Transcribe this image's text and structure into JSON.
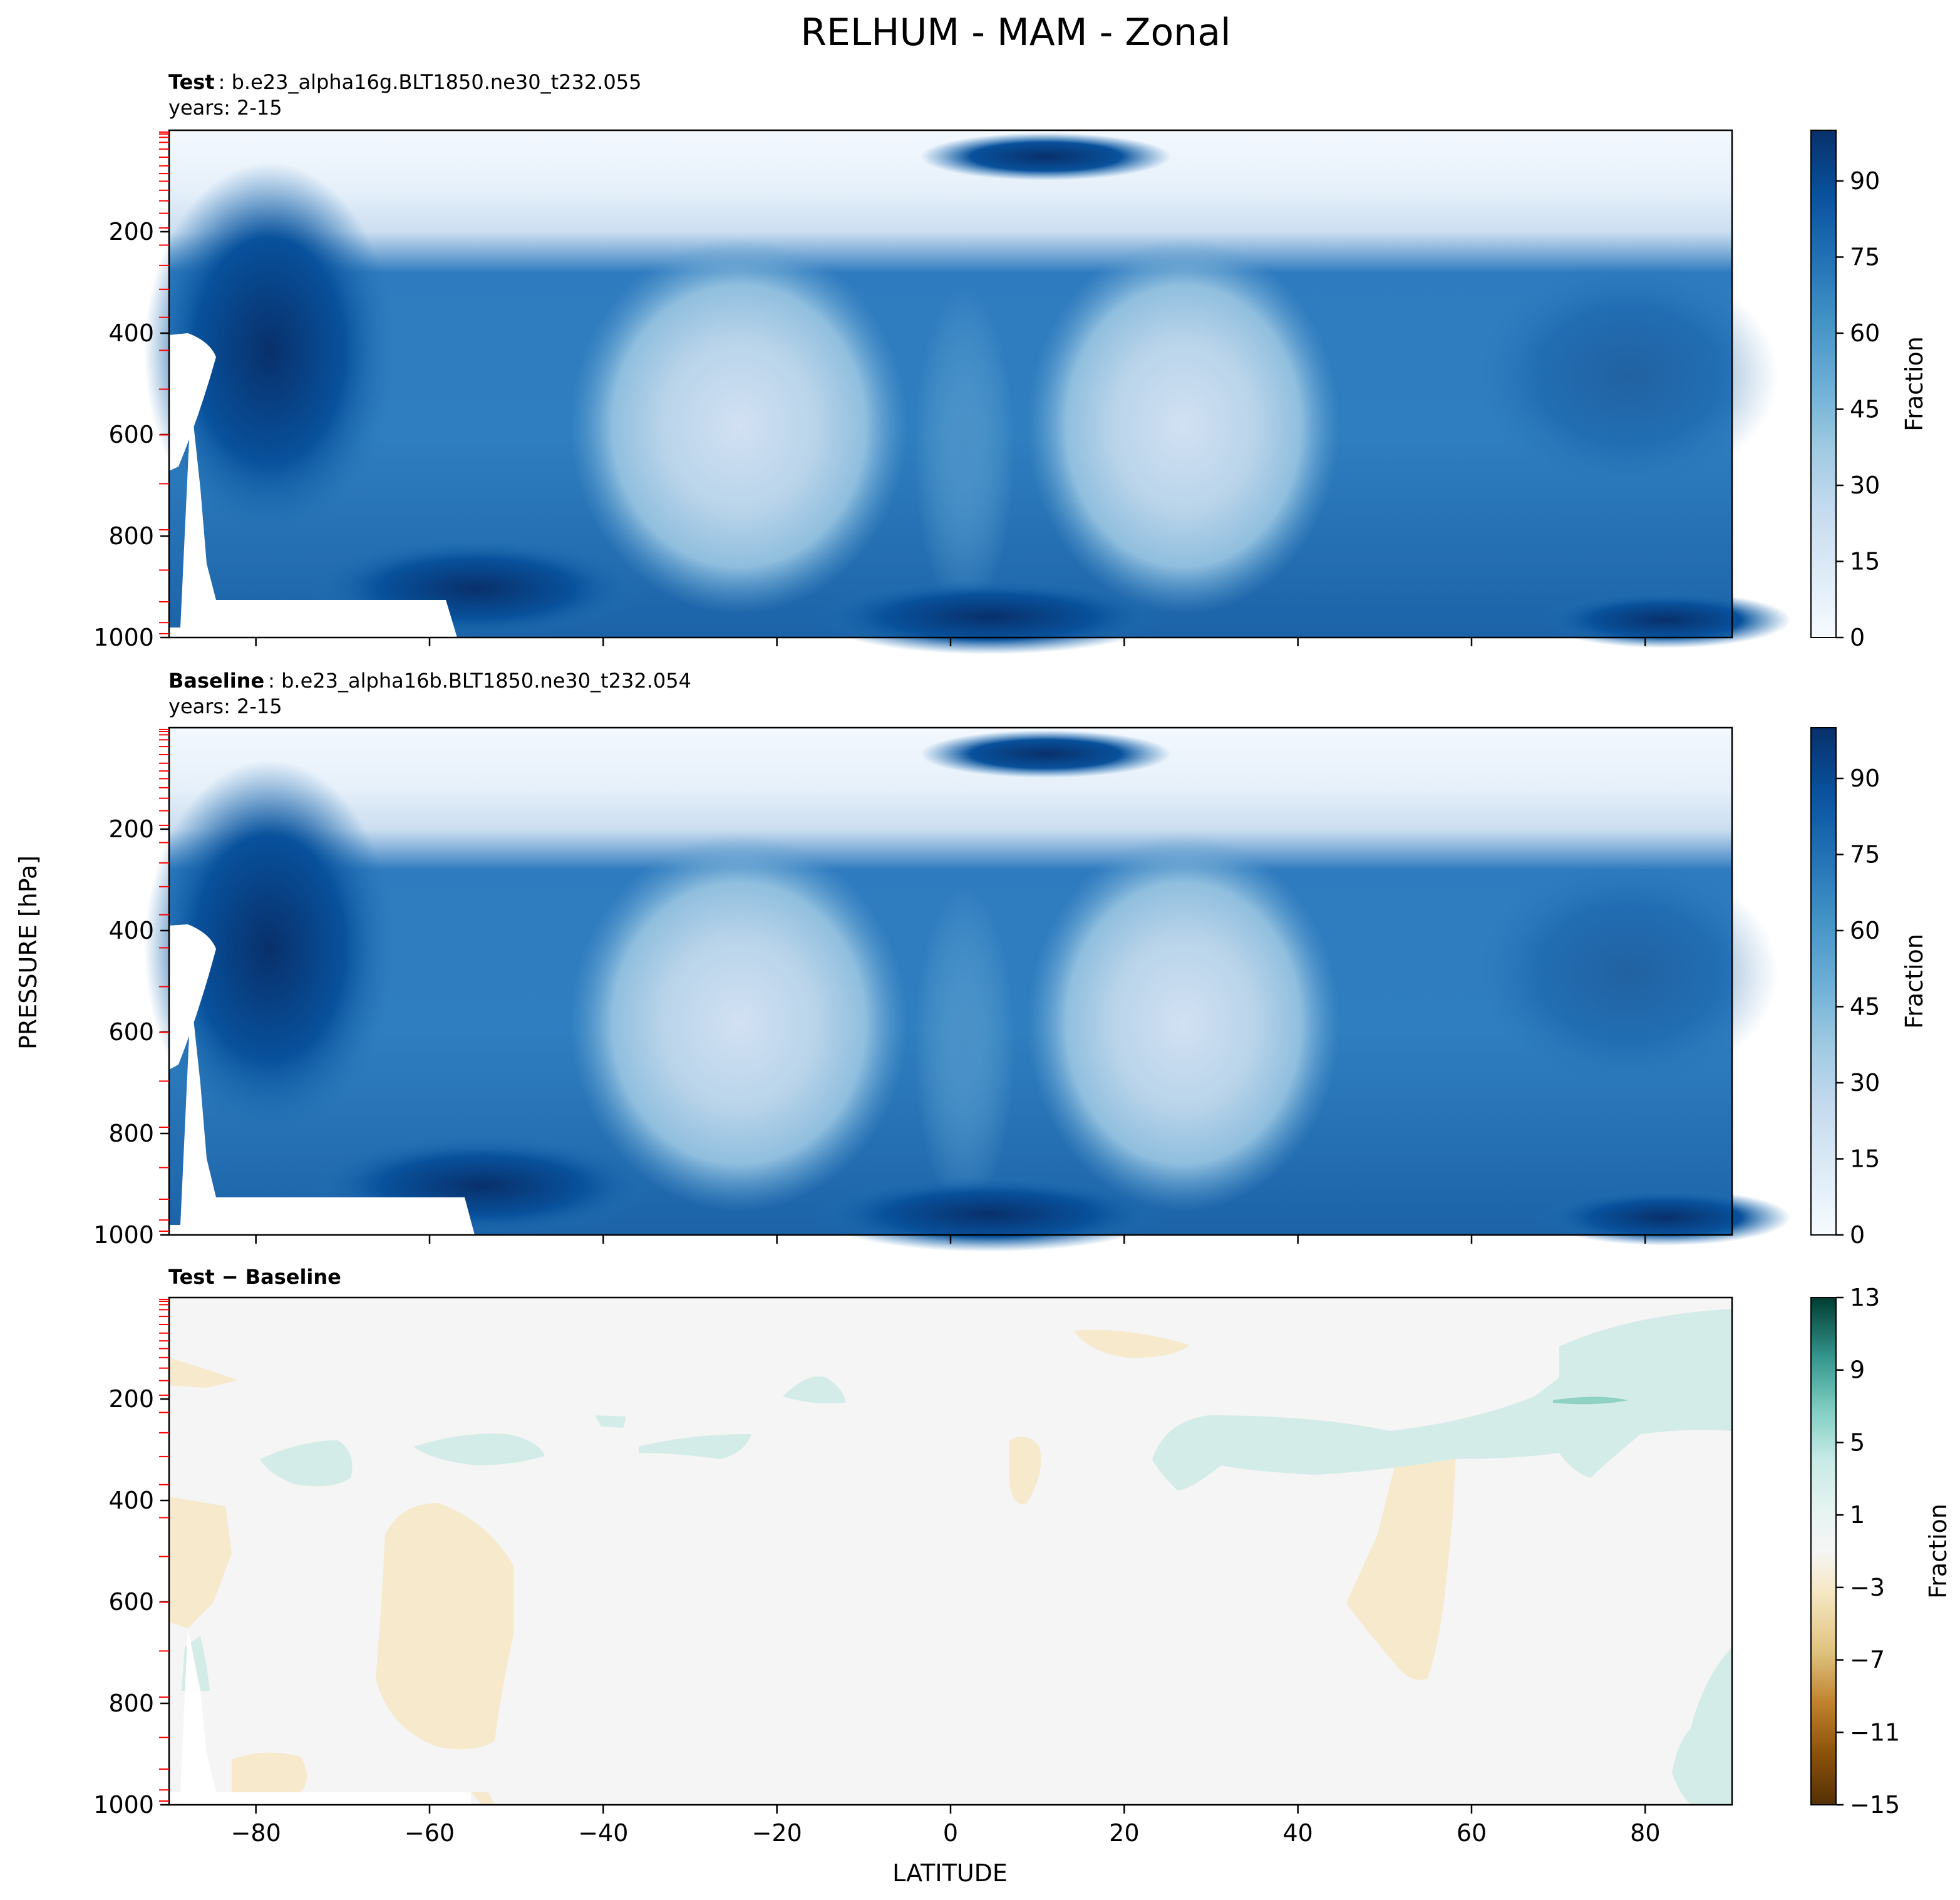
{
  "figure": {
    "title": "RELHUM - MAM - Zonal",
    "ylabel": "PRESSURE [hPa]",
    "xlabel": "LATITUDE"
  },
  "chart_data": [
    {
      "type": "heatmap",
      "title_bold": "Test",
      "title_rest": ": b.e23_alpha16g.BLT1850.ne30_t232.055",
      "subtitle": "years: 2-15",
      "x_ticks": [
        -80,
        -60,
        -40,
        -20,
        0,
        20,
        40,
        60,
        80
      ],
      "y_ticks": [
        200,
        400,
        600,
        800,
        1000
      ],
      "xlim": [
        -90,
        90
      ],
      "ylim": [
        1000,
        0
      ],
      "colorbar": {
        "label": "Fraction",
        "ticks": [
          0,
          15,
          30,
          45,
          60,
          75,
          90
        ],
        "range": [
          0,
          100
        ],
        "cmap": "Blues",
        "colors": [
          "#f7fbff",
          "#deebf7",
          "#c6dbef",
          "#9ecae1",
          "#6baed6",
          "#4292c6",
          "#2171b5",
          "#08519c",
          "#08306b"
        ]
      }
    },
    {
      "type": "heatmap",
      "title_bold": "Baseline",
      "title_rest": ": b.e23_alpha16b.BLT1850.ne30_t232.054",
      "subtitle": "years: 2-15",
      "x_ticks": [
        -80,
        -60,
        -40,
        -20,
        0,
        20,
        40,
        60,
        80
      ],
      "y_ticks": [
        200,
        400,
        600,
        800,
        1000
      ],
      "xlim": [
        -90,
        90
      ],
      "ylim": [
        1000,
        0
      ],
      "colorbar": {
        "label": "Fraction",
        "ticks": [
          0,
          15,
          30,
          45,
          60,
          75,
          90
        ],
        "range": [
          0,
          100
        ],
        "cmap": "Blues",
        "colors": [
          "#f7fbff",
          "#deebf7",
          "#c6dbef",
          "#9ecae1",
          "#6baed6",
          "#4292c6",
          "#2171b5",
          "#08519c",
          "#08306b"
        ]
      }
    },
    {
      "type": "heatmap",
      "title_bold": "Test − Baseline",
      "title_rest": "",
      "subtitle": "",
      "x_ticks": [
        -80,
        -60,
        -40,
        -20,
        0,
        20,
        40,
        60,
        80
      ],
      "y_ticks": [
        200,
        400,
        600,
        800,
        1000
      ],
      "xlim": [
        -90,
        90
      ],
      "ylim": [
        1000,
        0
      ],
      "colorbar": {
        "label": "Fraction",
        "ticks": [
          13,
          9,
          5,
          1,
          -3,
          -7,
          -11,
          -15
        ],
        "tick_labels": [
          "13",
          "9",
          "5",
          "1",
          "−3",
          "−7",
          "−11",
          "−15"
        ],
        "range": [
          -15,
          13
        ],
        "cmap": "BrBG",
        "colors": [
          "#543005",
          "#8c510a",
          "#bf812d",
          "#dfc27d",
          "#f6e8c3",
          "#f5f5f5",
          "#c7eae5",
          "#80cdc1",
          "#35978f",
          "#01665e",
          "#003c30"
        ]
      }
    }
  ]
}
